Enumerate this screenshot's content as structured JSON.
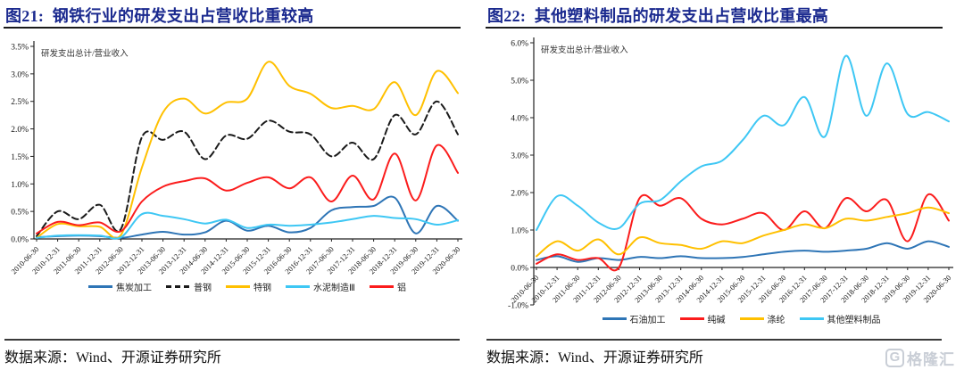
{
  "page": {
    "background": "#ffffff",
    "title_color": "#1b2a8f"
  },
  "logo": {
    "letter": "G",
    "text": "格隆汇",
    "color": "#c9ced6"
  },
  "chart_data": [
    {
      "type": "line",
      "title": "图21:  钢铁行业的研发支出占营收比重较高",
      "inner_label": "研发支出总计/营业收入",
      "source": "数据来源：Wind、开源证券研究所",
      "grid": false,
      "legend_position": "bottom",
      "ylim": [
        0,
        3.5
      ],
      "y_ticks": [
        "0.0%",
        "0.5%",
        "1.0%",
        "1.5%",
        "2.0%",
        "2.5%",
        "3.0%",
        "3.5%"
      ],
      "x": [
        "2010-06-30",
        "2010-12-31",
        "2011-06-30",
        "2011-12-31",
        "2012-06-30",
        "2012-12-31",
        "2013-06-30",
        "2013-12-31",
        "2014-06-30",
        "2014-12-31",
        "2015-06-30",
        "2015-12-31",
        "2016-06-30",
        "2016-12-31",
        "2017-06-30",
        "2017-12-31",
        "2018-06-30",
        "2018-12-31",
        "2019-06-30",
        "2019-12-31",
        "2020-06-30"
      ],
      "series": [
        {
          "name": "焦炭加工",
          "color": "#2E75B6",
          "dash": null,
          "values": [
            0.03,
            0.05,
            0.06,
            0.05,
            0.02,
            0.08,
            0.13,
            0.08,
            0.12,
            0.33,
            0.15,
            0.24,
            0.12,
            0.2,
            0.52,
            0.58,
            0.6,
            0.75,
            0.1,
            0.6,
            0.33
          ]
        },
        {
          "name": "普钢",
          "color": "#1a1a1a",
          "dash": "7,4",
          "values": [
            0.05,
            0.5,
            0.36,
            0.62,
            0.18,
            1.85,
            1.8,
            1.95,
            1.45,
            1.88,
            1.82,
            2.15,
            1.95,
            1.9,
            1.5,
            1.75,
            1.45,
            2.25,
            1.9,
            2.5,
            1.9
          ]
        },
        {
          "name": "特钢",
          "color": "#FFC000",
          "dash": null,
          "values": [
            0.02,
            0.27,
            0.23,
            0.22,
            0.07,
            1.3,
            2.3,
            2.55,
            2.28,
            2.48,
            2.55,
            3.22,
            2.78,
            2.64,
            2.38,
            2.42,
            2.36,
            2.85,
            2.25,
            3.05,
            2.65
          ]
        },
        {
          "name": "水泥制造Ⅲ",
          "color": "#3EC7F4",
          "dash": null,
          "values": [
            0.02,
            0.06,
            0.07,
            0.06,
            0.03,
            0.45,
            0.42,
            0.36,
            0.28,
            0.35,
            0.2,
            0.26,
            0.24,
            0.26,
            0.3,
            0.36,
            0.42,
            0.38,
            0.36,
            0.26,
            0.34
          ]
        },
        {
          "name": "铝",
          "color": "#FB1C1C",
          "dash": null,
          "values": [
            0.1,
            0.31,
            0.25,
            0.3,
            0.14,
            0.68,
            0.95,
            1.05,
            1.1,
            0.88,
            1.02,
            1.12,
            0.92,
            1.12,
            0.68,
            1.15,
            0.72,
            1.55,
            0.7,
            1.7,
            1.2
          ]
        }
      ]
    },
    {
      "type": "line",
      "title": "图22:  其他塑料制品的研发支出占营收比重最高",
      "inner_label": "研发支出总计/营业收入",
      "source": "数据来源：Wind、开源证券研究所",
      "grid": false,
      "legend_position": "bottom",
      "ylim": [
        -1,
        6
      ],
      "y_ticks": [
        "-1.0%",
        "0.0%",
        "1.0%",
        "2.0%",
        "3.0%",
        "4.0%",
        "5.0%",
        "6.0%"
      ],
      "x": [
        "2010-06-30",
        "2010-12-31",
        "2011-06-30",
        "2011-12-31",
        "2012-06-30",
        "2012-12-31",
        "2013-06-30",
        "2013-12-31",
        "2014-06-30",
        "2014-12-31",
        "2015-06-30",
        "2015-12-31",
        "2016-06-30",
        "2016-12-31",
        "2017-06-30",
        "2017-12-31",
        "2018-06-30",
        "2018-12-31",
        "2019-06-30",
        "2019-12-31",
        "2020-06-30"
      ],
      "series": [
        {
          "name": "石油加工",
          "color": "#2E75B6",
          "dash": null,
          "values": [
            0.2,
            0.3,
            0.15,
            0.25,
            0.2,
            0.28,
            0.25,
            0.3,
            0.25,
            0.25,
            0.28,
            0.35,
            0.42,
            0.45,
            0.42,
            0.45,
            0.5,
            0.65,
            0.5,
            0.7,
            0.55
          ]
        },
        {
          "name": "纯碱",
          "color": "#FB1C1C",
          "dash": null,
          "values": [
            0.1,
            0.35,
            0.2,
            0.25,
            0.0,
            1.85,
            1.65,
            1.85,
            1.3,
            1.15,
            1.3,
            1.45,
            1.0,
            1.5,
            1.05,
            1.85,
            1.5,
            1.8,
            0.7,
            1.95,
            1.25
          ]
        },
        {
          "name": "涤纶",
          "color": "#FFC000",
          "dash": null,
          "values": [
            0.3,
            0.7,
            0.45,
            0.75,
            0.35,
            0.8,
            0.65,
            0.6,
            0.5,
            0.7,
            0.65,
            0.85,
            1.0,
            1.15,
            1.05,
            1.3,
            1.25,
            1.35,
            1.45,
            1.6,
            1.45
          ]
        },
        {
          "name": "其他塑料制品",
          "color": "#3EC7F4",
          "dash": null,
          "values": [
            1.0,
            1.9,
            1.65,
            1.2,
            1.05,
            1.7,
            1.8,
            2.3,
            2.7,
            2.85,
            3.4,
            4.05,
            3.8,
            4.55,
            3.5,
            5.65,
            4.05,
            5.45,
            4.1,
            4.15,
            3.9
          ]
        }
      ]
    }
  ]
}
